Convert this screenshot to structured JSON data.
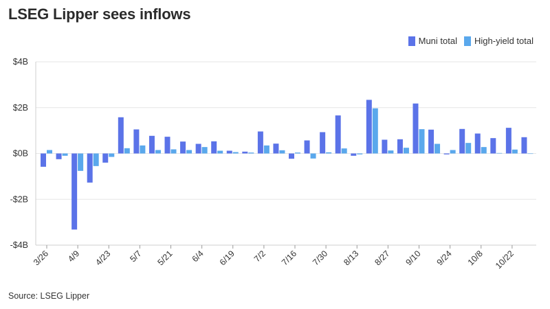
{
  "title": "LSEG Lipper sees inflows",
  "source": "Source: LSEG Lipper",
  "colors": {
    "muni": "#5b73e8",
    "high_yield": "#5aa8ec",
    "grid": "#e6e6e6"
  },
  "chart_data": {
    "type": "bar",
    "title": "LSEG Lipper sees inflows",
    "ylim": [
      -4,
      4
    ],
    "yticks": [
      4,
      2,
      0,
      -2,
      -4
    ],
    "ytick_labels": [
      "$4B",
      "$2B",
      "$0B",
      "-$2B",
      "-$4B"
    ],
    "legend_position": "top-right",
    "xtick_labels": [
      "3/26",
      "4/9",
      "4/23",
      "5/7",
      "5/21",
      "6/4",
      "6/19",
      "7/2",
      "7/16",
      "7/30",
      "8/13",
      "8/27",
      "9/10",
      "9/24",
      "10/8",
      "10/22"
    ],
    "series": [
      {
        "name": "Muni total",
        "values": [
          -0.58,
          -0.25,
          -3.32,
          -1.27,
          -0.4,
          1.58,
          1.05,
          0.77,
          0.73,
          0.52,
          0.42,
          0.53,
          0.12,
          0.08,
          0.96,
          0.43,
          -0.23,
          0.57,
          0.93,
          1.66,
          -0.1,
          2.34,
          0.6,
          0.62,
          2.18,
          1.04,
          -0.04,
          1.07,
          0.87,
          0.67,
          1.12,
          0.71
        ]
      },
      {
        "name": "High-yield total",
        "values": [
          0.15,
          -0.1,
          -0.76,
          -0.55,
          -0.15,
          0.23,
          0.35,
          0.15,
          0.18,
          0.15,
          0.28,
          0.12,
          0.06,
          0.04,
          0.35,
          0.14,
          0.04,
          -0.22,
          0.05,
          0.22,
          -0.04,
          1.97,
          0.13,
          0.25,
          1.06,
          0.42,
          0.15,
          0.46,
          0.28,
          0.02,
          0.17,
          0.0
        ]
      }
    ]
  }
}
